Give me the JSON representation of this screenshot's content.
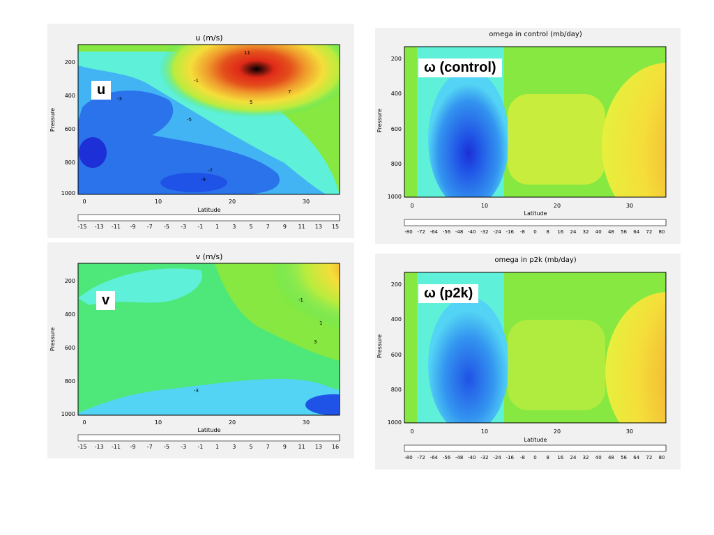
{
  "panels": {
    "u": {
      "title": "u (m/s)",
      "tag": "u",
      "xlabel": "Latitude",
      "ylabel": "Pressure",
      "x_ticks": [
        "0",
        "10",
        "20",
        "30"
      ],
      "y_ticks": [
        "200",
        "400",
        "600",
        "800",
        "1000"
      ],
      "colorbar_ticks": [
        "-15",
        "-13",
        "-11",
        "-9",
        "-7",
        "-5",
        "-3",
        "-1",
        "1",
        "3",
        "5",
        "7",
        "9",
        "11",
        "13",
        "15"
      ],
      "contour_labels": [
        "-1",
        "-3",
        "-5",
        "-7",
        "-9",
        "5",
        "7",
        "11"
      ]
    },
    "v": {
      "title": "v (m/s)",
      "tag": "v",
      "xlabel": "Latitude",
      "ylabel": "Pressure",
      "x_ticks": [
        "0",
        "10",
        "20",
        "30"
      ],
      "y_ticks": [
        "200",
        "400",
        "600",
        "800",
        "1000"
      ],
      "colorbar_ticks": [
        "-15",
        "-13",
        "-11",
        "-9",
        "-7",
        "-5",
        "-3",
        "-1",
        "1",
        "3",
        "5",
        "7",
        "9",
        "11",
        "13",
        "16"
      ],
      "contour_labels": [
        "-1",
        "1",
        "3",
        "-3"
      ]
    },
    "omega_control": {
      "title": "omega in control (mb/day)",
      "tag": "ω (control)",
      "xlabel": "Latitude",
      "ylabel": "Pressure",
      "x_ticks": [
        "0",
        "10",
        "20",
        "30"
      ],
      "y_ticks": [
        "200",
        "400",
        "600",
        "800",
        "1000"
      ],
      "colorbar_ticks": [
        "-80",
        "-72",
        "-64",
        "-56",
        "-48",
        "-40",
        "-32",
        "-24",
        "-16",
        "-8",
        "0",
        "8",
        "16",
        "24",
        "32",
        "40",
        "48",
        "56",
        "64",
        "72",
        "80"
      ]
    },
    "omega_p2k": {
      "title": "omega in p2k (mb/day)",
      "tag": "ω (p2k)",
      "xlabel": "Latitude",
      "ylabel": "Pressure",
      "x_ticks": [
        "0",
        "10",
        "20",
        "30"
      ],
      "y_ticks": [
        "200",
        "400",
        "600",
        "800",
        "1000"
      ],
      "colorbar_ticks": [
        "-80",
        "-72",
        "-64",
        "-56",
        "-48",
        "-40",
        "-32",
        "-24",
        "-16",
        "-8",
        "0",
        "8",
        "16",
        "24",
        "32",
        "40",
        "48",
        "56",
        "64",
        "72",
        "80"
      ]
    }
  },
  "colors": {
    "colorbar": [
      "#ffffff",
      "#5b1e9e",
      "#3a1fb8",
      "#1d2fd6",
      "#1f52e6",
      "#2a73ea",
      "#3394f0",
      "#42b4f4",
      "#53d4f4",
      "#5ef0d8",
      "#4ee87a",
      "#86e840",
      "#b9ec3e",
      "#e6f03c",
      "#f5de3a",
      "#f3bc34",
      "#ef9a2c",
      "#e97624",
      "#e4501c",
      "#e02a18",
      "#000000"
    ],
    "panel_bg": "#f1f1f1",
    "field_bg": "#4ee87a"
  },
  "chart_data": [
    {
      "type": "heatmap",
      "title": "u (m/s)",
      "xlabel": "Latitude",
      "ylabel": "Pressure",
      "xlim": [
        0,
        35
      ],
      "ylim": [
        1000,
        100
      ],
      "clim": [
        -15,
        15
      ],
      "features": [
        {
          "kind": "max",
          "lat": 26,
          "p": 180,
          "value": 17
        },
        {
          "kind": "min",
          "lat": 15,
          "p": 930,
          "value": -11
        },
        {
          "kind": "min",
          "lat": 2,
          "p": 780,
          "value": -11
        },
        {
          "kind": "region",
          "lat": 6,
          "p": 450,
          "value": -9
        }
      ]
    },
    {
      "type": "heatmap",
      "title": "v (m/s)",
      "xlabel": "Latitude",
      "ylabel": "Pressure",
      "xlim": [
        0,
        35
      ],
      "ylim": [
        1000,
        100
      ],
      "clim": [
        -15,
        16
      ],
      "features": [
        {
          "kind": "max",
          "lat": 34,
          "p": 210,
          "value": 11
        },
        {
          "kind": "min",
          "lat": 34,
          "p": 950,
          "value": -9
        },
        {
          "kind": "min",
          "lat": 12,
          "p": 280,
          "value": -3
        }
      ]
    },
    {
      "type": "heatmap",
      "title": "omega in control (mb/day)",
      "xlabel": "Latitude",
      "ylabel": "Pressure",
      "xlim": [
        0,
        35
      ],
      "ylim": [
        1000,
        100
      ],
      "clim": [
        -80,
        80
      ],
      "features": [
        {
          "kind": "min",
          "lat": 8,
          "p": 700,
          "value": -56
        },
        {
          "kind": "max",
          "lat": 35,
          "p": 700,
          "value": 72
        },
        {
          "kind": "region",
          "lat": 17,
          "p": 700,
          "value": 24
        }
      ]
    },
    {
      "type": "heatmap",
      "title": "omega in p2k (mb/day)",
      "xlabel": "Latitude",
      "ylabel": "Pressure",
      "xlim": [
        0,
        35
      ],
      "ylim": [
        1000,
        100
      ],
      "clim": [
        -80,
        80
      ],
      "features": [
        {
          "kind": "min",
          "lat": 8,
          "p": 700,
          "value": -48
        },
        {
          "kind": "max",
          "lat": 35,
          "p": 700,
          "value": 64
        }
      ]
    }
  ]
}
